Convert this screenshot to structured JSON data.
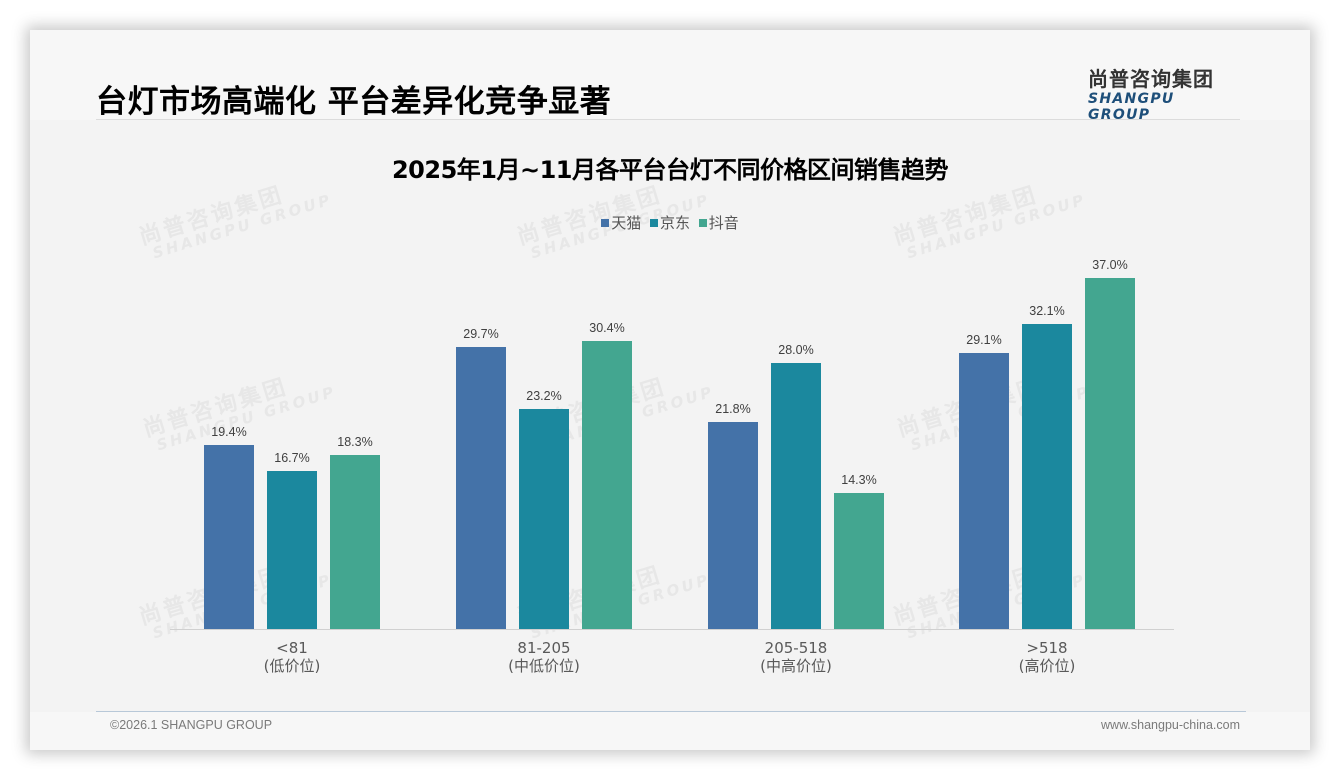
{
  "page": {
    "title": "台灯市场高端化 平台差异化竞争显著",
    "logo": {
      "cn": "尚普咨询集团",
      "en": "SHANGPU GROUP"
    },
    "watermark": {
      "cn": "尚普咨询集团",
      "en": "SHANGPU GROUP"
    },
    "footer": {
      "left": "©2026.1 SHANGPU GROUP",
      "right": "www.shangpu-china.com"
    }
  },
  "colors": {
    "tmall": "#4472a8",
    "jd": "#1b889e",
    "douyin": "#43a690"
  },
  "chart_data": {
    "type": "bar",
    "title": "2025年1月~11月各平台台灯不同价格区间销售趋势",
    "xlabel": "",
    "ylabel": "",
    "ylim": [
      0,
      40
    ],
    "grid": false,
    "legend_position": "top",
    "categories": [
      "<81",
      "81-205",
      "205-518",
      ">518"
    ],
    "category_sublabels": [
      "(低价位)",
      "(中低价位)",
      "(中高价位)",
      "(高价位)"
    ],
    "series": [
      {
        "name": "天猫",
        "color": "#4472a8",
        "values": [
          19.4,
          29.7,
          21.8,
          29.1
        ],
        "labels": [
          "19.4%",
          "29.7%",
          "21.8%",
          "29.1%"
        ]
      },
      {
        "name": "京东",
        "color": "#1b889e",
        "values": [
          16.7,
          23.2,
          28.0,
          32.1
        ],
        "labels": [
          "16.7%",
          "23.2%",
          "28.0%",
          "32.1%"
        ]
      },
      {
        "name": "抖音",
        "color": "#43a690",
        "values": [
          18.3,
          30.4,
          14.3,
          37.0
        ],
        "labels": [
          "18.3%",
          "30.4%",
          "14.3%",
          "37.0%"
        ]
      }
    ],
    "value_suffix": "%"
  }
}
